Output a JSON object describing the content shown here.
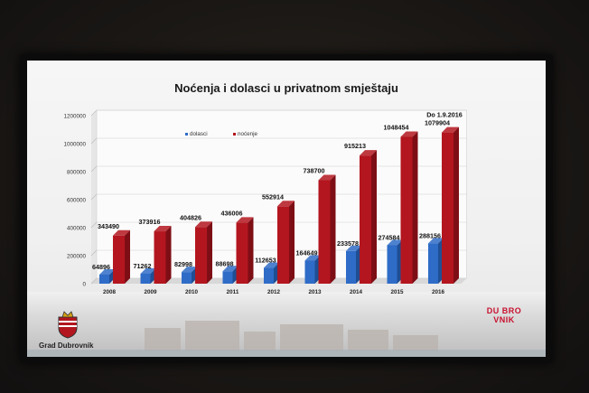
{
  "slide": {
    "title": "Noćenja i dolasci u privatnom smještaju",
    "footer_label": "Grad Dubrovnik",
    "logo_text": "DU BRO VNIK"
  },
  "chart_data": {
    "type": "bar",
    "title": "Noćenja i dolasci u privatnom smještaju",
    "annotation": "Do 1.9.2016",
    "categories": [
      "2008",
      "2009",
      "2010",
      "2011",
      "2012",
      "2013",
      "2014",
      "2015",
      "2016"
    ],
    "series": [
      {
        "name": "dolasci",
        "color": "#2f6cc7",
        "values": [
          64896,
          71262,
          82998,
          88698,
          112653,
          164649,
          233578,
          274584,
          288156
        ],
        "labels": [
          "64896",
          "71262",
          "82998",
          "88698",
          "112653",
          "164649",
          "233578",
          "274584",
          "288156"
        ]
      },
      {
        "name": "noćenje",
        "color": "#b3161f",
        "values": [
          343490,
          373916,
          404826,
          436006,
          552914,
          738700,
          915213,
          1048454,
          1079904
        ],
        "labels": [
          "343490",
          "373916",
          "404826",
          "436006",
          "552914",
          "738700",
          "915213",
          "1048454",
          "1079904"
        ]
      }
    ],
    "yticks": [
      "0",
      "200000",
      "400000",
      "600000",
      "800000",
      "1000000",
      "1200000"
    ],
    "ylim": [
      0,
      1200000
    ],
    "legend": "top-left",
    "grid": true
  },
  "colors": {
    "dolasci": "#2f6cc7",
    "nocenje": "#b3161f"
  }
}
